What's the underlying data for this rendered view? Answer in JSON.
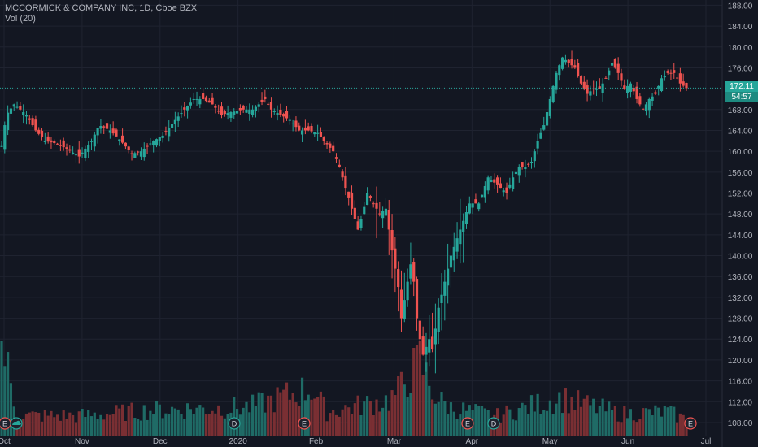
{
  "legend": {
    "title": "MCCORMICK & COMPANY INC, 1D, Cboe BZX",
    "volume": "Vol (20)"
  },
  "price_tags": {
    "last_price": "172.11",
    "countdown": "54:57"
  },
  "colors": {
    "background": "#131722",
    "grid": "#1f2330",
    "up": "#26a69a",
    "down": "#ef5350",
    "up_volume": "#1f6b66",
    "down_volume": "#7a2f33",
    "axis_text": "#b2b5be",
    "last_price_line": "#26a69a"
  },
  "chart_data": {
    "type": "candlestick",
    "title": "MCCORMICK & COMPANY INC, 1D, Cboe BZX",
    "y_axis_ticks": [
      "108.00",
      "112.00",
      "116.00",
      "120.00",
      "124.00",
      "128.00",
      "132.00",
      "136.00",
      "140.00",
      "144.00",
      "148.00",
      "152.00",
      "156.00",
      "160.00",
      "164.00",
      "168.00",
      "172.00",
      "176.00",
      "180.00",
      "184.00",
      "188.00"
    ],
    "y_range": [
      105.5,
      189
    ],
    "x_axis_ticks": [
      "Oct",
      "Nov",
      "Dec",
      "2020",
      "Feb",
      "Mar",
      "Apr",
      "May",
      "Jun",
      "Jul"
    ],
    "last_price": 172.11,
    "grid": true,
    "events": [
      {
        "type": "E",
        "date": "Oct"
      },
      {
        "type": "dividend-cloud",
        "date": "Oct"
      },
      {
        "type": "D",
        "date": "2020"
      },
      {
        "type": "E",
        "date": "Jan"
      },
      {
        "type": "E",
        "date": "Mar"
      },
      {
        "type": "D",
        "date": "Apr"
      },
      {
        "type": "E",
        "date": "Jun"
      }
    ],
    "close_path": [
      [
        0,
        161
      ],
      [
        3,
        167
      ],
      [
        8,
        169
      ],
      [
        16,
        167
      ],
      [
        22,
        164
      ],
      [
        28,
        162
      ],
      [
        35,
        161.5
      ],
      [
        42,
        160.5
      ],
      [
        50,
        159
      ],
      [
        58,
        162
      ],
      [
        63,
        165
      ],
      [
        70,
        164
      ],
      [
        77,
        162
      ],
      [
        84,
        159.5
      ],
      [
        90,
        160
      ],
      [
        98,
        162
      ],
      [
        104,
        163
      ],
      [
        112,
        166
      ],
      [
        118,
        168
      ],
      [
        124,
        170
      ],
      [
        130,
        170
      ],
      [
        136,
        169
      ],
      [
        142,
        167
      ],
      [
        148,
        167.5
      ],
      [
        156,
        168
      ],
      [
        162,
        168
      ],
      [
        170,
        170
      ],
      [
        174,
        168
      ],
      [
        180,
        167
      ],
      [
        186,
        166
      ],
      [
        192,
        164
      ],
      [
        198,
        164
      ],
      [
        204,
        163.5
      ],
      [
        208,
        162
      ],
      [
        214,
        160
      ],
      [
        218,
        157
      ],
      [
        222,
        153
      ],
      [
        226,
        149
      ],
      [
        230,
        145
      ],
      [
        233,
        148
      ],
      [
        236,
        152
      ],
      [
        240,
        150
      ],
      [
        244,
        148
      ],
      [
        248,
        149
      ],
      [
        252,
        141
      ],
      [
        256,
        134
      ],
      [
        258,
        128
      ],
      [
        262,
        135
      ],
      [
        265,
        140
      ],
      [
        267,
        130
      ],
      [
        270,
        124
      ],
      [
        272,
        121
      ],
      [
        276,
        124
      ],
      [
        278,
        122
      ],
      [
        282,
        130
      ],
      [
        286,
        135
      ],
      [
        290,
        140
      ],
      [
        296,
        145
      ],
      [
        302,
        150
      ],
      [
        308,
        150
      ],
      [
        314,
        155
      ],
      [
        318,
        154
      ],
      [
        322,
        153
      ],
      [
        326,
        152
      ],
      [
        330,
        155
      ],
      [
        334,
        157
      ],
      [
        338,
        157
      ],
      [
        342,
        158
      ],
      [
        346,
        162
      ],
      [
        350,
        165
      ],
      [
        354,
        170
      ],
      [
        358,
        175
      ],
      [
        362,
        178
      ],
      [
        366,
        177
      ],
      [
        370,
        176
      ],
      [
        374,
        173
      ],
      [
        378,
        171
      ],
      [
        382,
        172
      ],
      [
        386,
        172
      ],
      [
        390,
        174
      ],
      [
        394,
        177
      ],
      [
        398,
        175
      ],
      [
        402,
        172
      ],
      [
        406,
        173
      ],
      [
        410,
        170
      ],
      [
        414,
        168
      ],
      [
        418,
        170
      ],
      [
        422,
        171
      ],
      [
        426,
        174
      ],
      [
        430,
        175
      ],
      [
        434,
        175
      ],
      [
        438,
        173
      ],
      [
        442,
        172.11
      ]
    ],
    "volume_scale_note": "volume in shares, relative heights",
    "volume_range": [
      0,
      3000000
    ],
    "volume_levels": [
      [
        0,
        2400000
      ],
      [
        10,
        500000
      ],
      [
        50,
        500000
      ],
      [
        100,
        650000
      ],
      [
        160,
        720000
      ],
      [
        200,
        1200000
      ],
      [
        210,
        600000
      ],
      [
        250,
        900000
      ],
      [
        256,
        1100000
      ],
      [
        262,
        1500000
      ],
      [
        267,
        1700000
      ],
      [
        270,
        1900000
      ],
      [
        276,
        1300000
      ],
      [
        282,
        900000
      ],
      [
        290,
        700000
      ],
      [
        320,
        500000
      ],
      [
        360,
        950000
      ],
      [
        400,
        550000
      ],
      [
        430,
        600000
      ],
      [
        442,
        400000
      ]
    ]
  }
}
